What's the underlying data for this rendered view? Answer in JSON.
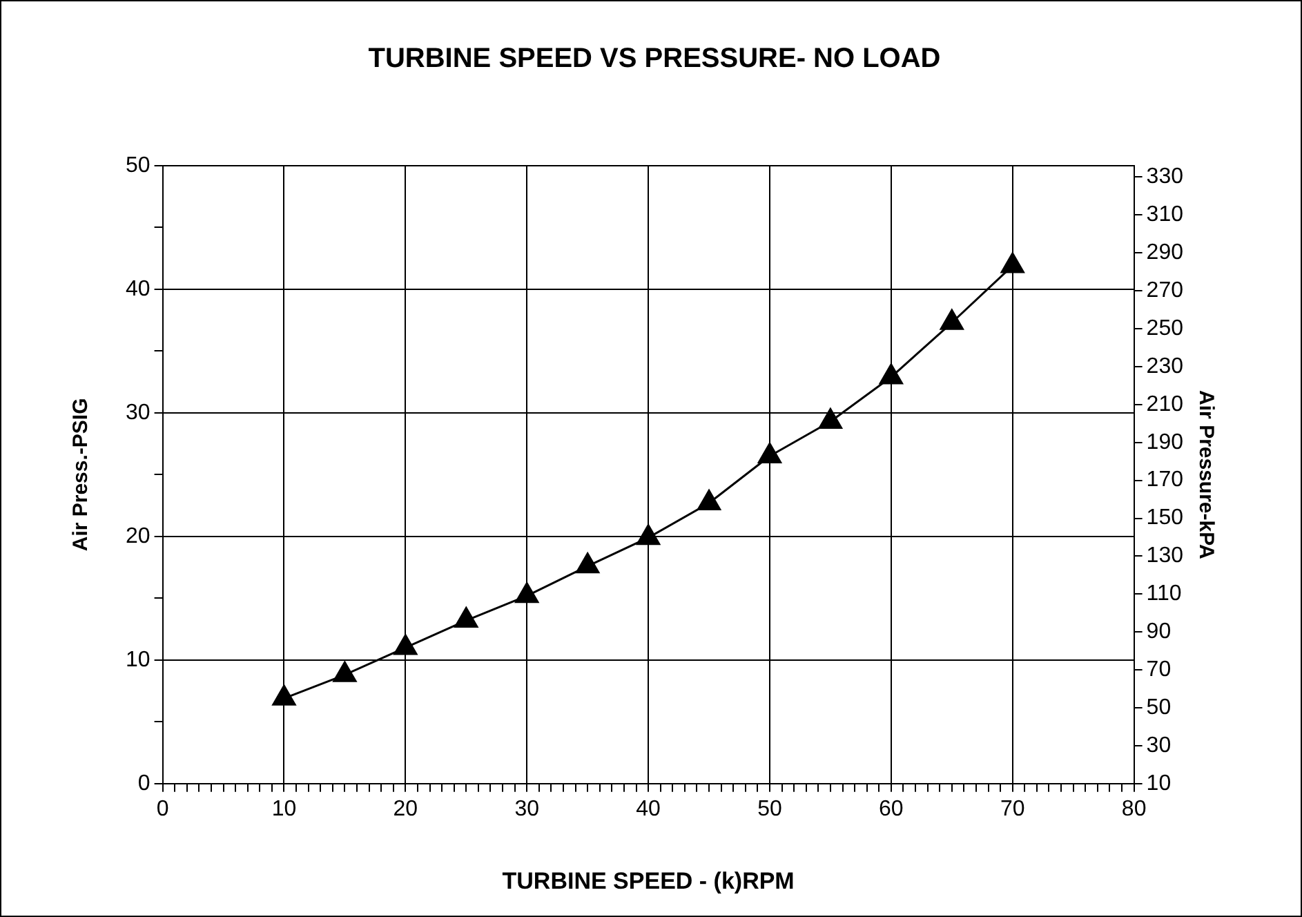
{
  "chart_data": {
    "type": "line",
    "title": "TURBINE SPEED VS PRESSURE- NO LOAD",
    "xlabel": "TURBINE SPEED - (k)RPM",
    "ylabel": "Air Press.-PSIG",
    "y2label": "Air Pressure-kPA",
    "x": [
      10,
      15,
      20,
      25,
      30,
      35,
      40,
      45,
      50,
      55,
      60,
      65,
      70
    ],
    "series": [
      {
        "color": "#000000",
        "values": [
          6.9,
          8.8,
          11.0,
          13.2,
          15.2,
          17.6,
          19.9,
          22.7,
          26.5,
          29.3,
          32.9,
          37.3,
          41.9
        ]
      }
    ],
    "xlim": [
      0,
      80
    ],
    "xticks": [
      0,
      {
        "value": 1,
        "label": null
      },
      {
        "value": 2,
        "label": null
      },
      {
        "value": 3,
        "label": null
      },
      {
        "value": 4,
        "label": null
      },
      {
        "value": 5,
        "label": null
      },
      {
        "value": 6,
        "label": null
      },
      {
        "value": 7,
        "label": null
      },
      {
        "value": 8,
        "label": null
      },
      {
        "value": 9,
        "label": null
      },
      10,
      {
        "value": 11,
        "label": null
      },
      {
        "value": 12,
        "label": null
      },
      {
        "value": 13,
        "label": null
      },
      {
        "value": 14,
        "label": null
      },
      {
        "value": 15,
        "label": null
      },
      {
        "value": 16,
        "label": null
      },
      {
        "value": 17,
        "label": null
      },
      {
        "value": 18,
        "label": null
      },
      {
        "value": 19,
        "label": null
      },
      20,
      {
        "value": 21,
        "label": null
      },
      {
        "value": 22,
        "label": null
      },
      {
        "value": 23,
        "label": null
      },
      {
        "value": 24,
        "label": null
      },
      {
        "value": 25,
        "label": null
      },
      {
        "value": 26,
        "label": null
      },
      {
        "value": 27,
        "label": null
      },
      {
        "value": 28,
        "label": null
      },
      {
        "value": 29,
        "label": null
      },
      30,
      {
        "value": 31,
        "label": null
      },
      {
        "value": 32,
        "label": null
      },
      {
        "value": 33,
        "label": null
      },
      {
        "value": 34,
        "label": null
      },
      {
        "value": 35,
        "label": null
      },
      {
        "value": 36,
        "label": null
      },
      {
        "value": 37,
        "label": null
      },
      {
        "value": 38,
        "label": null
      },
      {
        "value": 39,
        "label": null
      },
      40,
      {
        "value": 41,
        "label": null
      },
      {
        "value": 42,
        "label": null
      },
      {
        "value": 43,
        "label": null
      },
      {
        "value": 44,
        "label": null
      },
      {
        "value": 45,
        "label": null
      },
      {
        "value": 46,
        "label": null
      },
      {
        "value": 47,
        "label": null
      },
      {
        "value": 48,
        "label": null
      },
      {
        "value": 49,
        "label": null
      },
      50,
      {
        "value": 51,
        "label": null
      },
      {
        "value": 52,
        "label": null
      },
      {
        "value": 53,
        "label": null
      },
      {
        "value": 54,
        "label": null
      },
      {
        "value": 55,
        "label": null
      },
      {
        "value": 56,
        "label": null
      },
      {
        "value": 57,
        "label": null
      },
      {
        "value": 58,
        "label": null
      },
      {
        "value": 59,
        "label": null
      },
      60,
      {
        "value": 61,
        "label": null
      },
      {
        "value": 62,
        "label": null
      },
      {
        "value": 63,
        "label": null
      },
      {
        "value": 64,
        "label": null
      },
      {
        "value": 65,
        "label": null
      },
      {
        "value": 66,
        "label": null
      },
      {
        "value": 67,
        "label": null
      },
      {
        "value": 68,
        "label": null
      },
      {
        "value": 69,
        "label": null
      },
      70,
      {
        "value": 71,
        "label": null
      },
      {
        "value": 72,
        "label": null
      },
      {
        "value": 73,
        "label": null
      },
      {
        "value": 74,
        "label": null
      },
      {
        "value": 75,
        "label": null
      },
      {
        "value": 76,
        "label": null
      },
      {
        "value": 77,
        "label": null
      },
      {
        "value": 78,
        "label": null
      },
      {
        "value": 79,
        "label": null
      },
      80
    ],
    "ylim": [
      0,
      50
    ],
    "yticks": [
      0,
      {
        "value": 5,
        "label": null
      },
      10,
      {
        "value": 15,
        "label": null
      },
      20,
      {
        "value": 25,
        "label": null
      },
      30,
      {
        "value": 35,
        "label": null
      },
      40,
      {
        "value": 45,
        "label": null
      },
      50
    ],
    "y2lim": [
      10,
      336
    ],
    "y2ticks": [
      10,
      30,
      50,
      70,
      90,
      110,
      130,
      150,
      170,
      190,
      210,
      230,
      250,
      270,
      290,
      310,
      330
    ],
    "grid": true,
    "marker": "triangle",
    "line_style": "solid",
    "legend": false
  }
}
